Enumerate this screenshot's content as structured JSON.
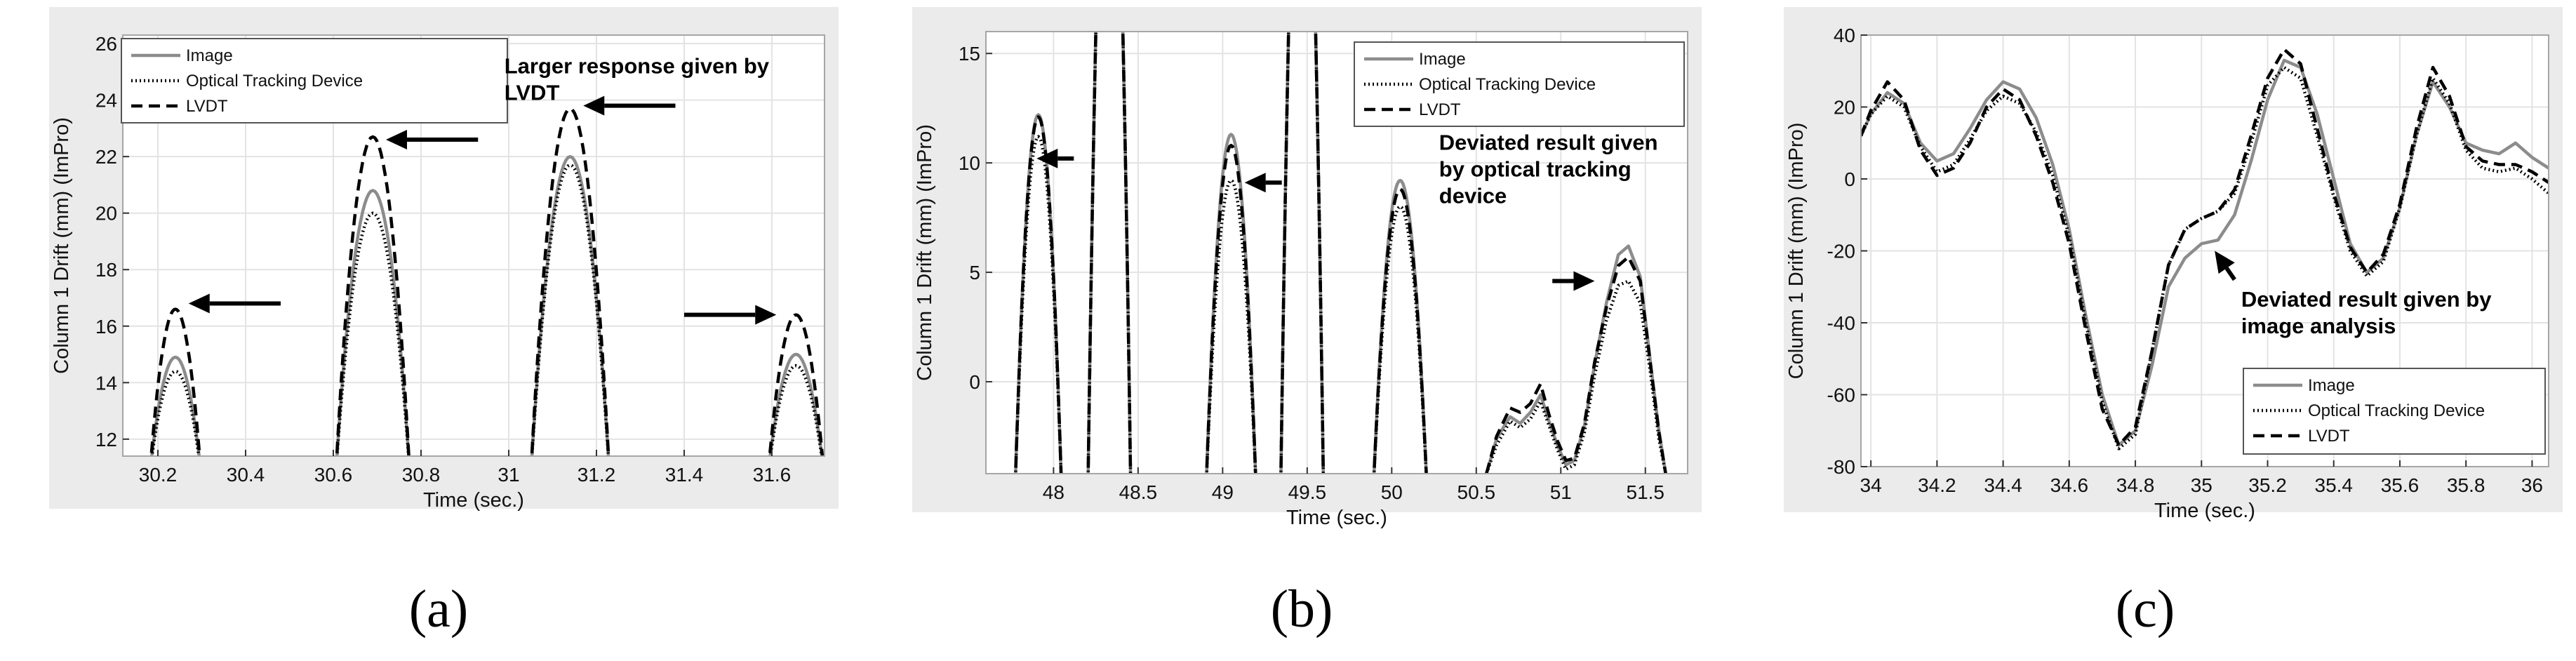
{
  "colors": {
    "image": "#8c8c8c",
    "optical": "#000000",
    "lvdt": "#000000",
    "frame": "#a6a6a6",
    "grid": "#e3e3e3"
  },
  "chart_data": [
    {
      "id": "a",
      "type": "line",
      "sublabel": "(a)",
      "xlabel": "Time (sec.)",
      "ylabel": "Column 1 Drift (mm) (ImPro)",
      "xlim": [
        30.12,
        31.72
      ],
      "ylim": [
        11.4,
        26.3
      ],
      "xticks": [
        30.2,
        30.4,
        30.6,
        30.8,
        31,
        31.2,
        31.4,
        31.6
      ],
      "yticks": [
        12,
        14,
        16,
        18,
        20,
        22,
        24,
        26
      ],
      "grid": true,
      "legend": {
        "placement": "top-left",
        "entries": [
          "Image",
          "Optical Tracking Device",
          "LVDT"
        ]
      },
      "annotations": [
        {
          "text": [
            "Larger response given by",
            "LVDT"
          ],
          "x": 30.99,
          "y": 24.95
        }
      ],
      "arrows": [
        {
          "from": [
            30.48,
            16.8
          ],
          "to": [
            30.27,
            16.8
          ]
        },
        {
          "from": [
            30.93,
            22.6
          ],
          "to": [
            30.72,
            22.6
          ]
        },
        {
          "from": [
            31.38,
            23.8
          ],
          "to": [
            31.17,
            23.8
          ]
        },
        {
          "from": [
            31.4,
            16.4
          ],
          "to": [
            31.61,
            16.4
          ]
        }
      ],
      "peaks": [
        {
          "center": 30.24,
          "half_width": 0.055,
          "image": 14.9,
          "optical": 14.4,
          "lvdt": 16.6
        },
        {
          "center": 30.69,
          "half_width": 0.08,
          "image": 20.8,
          "optical": 20.0,
          "lvdt": 22.7
        },
        {
          "center": 31.14,
          "half_width": 0.085,
          "image": 22.0,
          "optical": 21.7,
          "lvdt": 23.7
        },
        {
          "center": 31.655,
          "half_width": 0.06,
          "image": 15.0,
          "optical": 14.6,
          "lvdt": 16.4
        }
      ]
    },
    {
      "id": "b",
      "type": "line",
      "sublabel": "(b)",
      "xlabel": "Time (sec.)",
      "ylabel": "Column 1 Drift (mm) (ImPro)",
      "xlim": [
        47.6,
        51.75
      ],
      "ylim": [
        -4.2,
        16
      ],
      "xticks": [
        48,
        48.5,
        49,
        49.5,
        50,
        50.5,
        51,
        51.5
      ],
      "yticks": [
        0,
        5,
        10,
        15
      ],
      "grid": true,
      "legend": {
        "placement": "top-right",
        "entries": [
          "Image",
          "Optical Tracking Device",
          "LVDT"
        ]
      },
      "annotations": [
        {
          "text": [
            "Deviated result given",
            "by optical tracking",
            "device"
          ],
          "x": 50.28,
          "y": 10.6
        }
      ],
      "arrows": [
        {
          "from": [
            48.12,
            10.2
          ],
          "to": [
            47.9,
            10.2
          ]
        },
        {
          "from": [
            49.35,
            9.1
          ],
          "to": [
            49.13,
            9.1
          ]
        },
        {
          "from": [
            50.95,
            4.6
          ],
          "to": [
            51.2,
            4.6
          ]
        }
      ],
      "peaks": [
        {
          "center": 47.91,
          "half_width": 0.13,
          "image": 12.2,
          "optical": 11.2,
          "lvdt": 12.1
        },
        {
          "center": 48.33,
          "half_width": 0.12,
          "image": 30,
          "optical": 30,
          "lvdt": 30
        },
        {
          "center": 49.05,
          "half_width": 0.14,
          "image": 11.3,
          "optical": 9.2,
          "lvdt": 10.8
        },
        {
          "center": 49.47,
          "half_width": 0.12,
          "image": 30,
          "optical": 30,
          "lvdt": 30
        },
        {
          "center": 50.05,
          "half_width": 0.15,
          "image": 9.2,
          "optical": 8.0,
          "lvdt": 8.8
        }
      ],
      "segments": {
        "image": {
          "x": [
            50.56,
            50.62,
            50.7,
            50.76,
            50.82,
            50.88,
            50.93,
            50.98,
            51.03,
            51.08,
            51.14,
            51.2,
            51.27,
            51.34,
            51.4,
            51.47,
            51.53,
            51.58,
            51.62
          ],
          "y": [
            -4.2,
            -2.6,
            -1.6,
            -1.9,
            -1.4,
            -0.6,
            -1.8,
            -2.9,
            -3.8,
            -3.6,
            -2.0,
            0.8,
            3.6,
            5.8,
            6.2,
            4.8,
            0.9,
            -2.2,
            -4.2
          ]
        },
        "optical": {
          "x": [
            50.56,
            50.62,
            50.7,
            50.76,
            50.82,
            50.88,
            50.93,
            50.98,
            51.03,
            51.08,
            51.14,
            51.2,
            51.27,
            51.34,
            51.4,
            51.47,
            51.53,
            51.58,
            51.62
          ],
          "y": [
            -4.2,
            -2.9,
            -1.8,
            -2.1,
            -1.7,
            -0.9,
            -2.0,
            -3.1,
            -4.0,
            -3.8,
            -2.3,
            0.3,
            2.8,
            4.4,
            4.6,
            3.6,
            0.4,
            -2.6,
            -4.2
          ]
        },
        "lvdt": {
          "x": [
            50.56,
            50.62,
            50.7,
            50.76,
            50.82,
            50.88,
            50.93,
            50.98,
            51.03,
            51.08,
            51.14,
            51.2,
            51.27,
            51.34,
            51.4,
            51.47,
            51.53,
            51.58,
            51.62
          ],
          "y": [
            -4.2,
            -2.5,
            -1.2,
            -1.4,
            -1.0,
            -0.1,
            -1.5,
            -2.7,
            -3.6,
            -3.5,
            -1.9,
            0.9,
            3.4,
            5.3,
            5.7,
            4.6,
            0.8,
            -2.3,
            -4.2
          ]
        }
      }
    },
    {
      "id": "c",
      "type": "line",
      "sublabel": "(c)",
      "xlabel": "Time (sec.)",
      "ylabel": "Column 1 Drift (mm) (ImPro)",
      "xlim": [
        33.97,
        36.05
      ],
      "ylim": [
        -80,
        40
      ],
      "xticks": [
        34,
        34.2,
        34.4,
        34.6,
        34.8,
        35,
        35.2,
        35.4,
        35.6,
        35.8,
        36
      ],
      "yticks": [
        -80,
        -60,
        -40,
        -20,
        0,
        20,
        40
      ],
      "grid": true,
      "legend": {
        "placement": "bottom-right",
        "entries": [
          "Image",
          "Optical Tracking Device",
          "LVDT"
        ]
      },
      "annotations": [
        {
          "text": [
            "Deviated result given by",
            "image analysis"
          ],
          "x": 35.12,
          "y": -35.5
        }
      ],
      "arrows": [
        {
          "from": [
            35.1,
            -28
          ],
          "to": [
            35.04,
            -20
          ]
        }
      ],
      "series": [
        {
          "key": "image",
          "x": [
            33.97,
            34.0,
            34.05,
            34.1,
            34.15,
            34.2,
            34.25,
            34.3,
            34.35,
            34.4,
            34.45,
            34.5,
            34.55,
            34.6,
            34.65,
            34.7,
            34.75,
            34.8,
            34.85,
            34.9,
            34.95,
            35.0,
            35.05,
            35.1,
            35.15,
            35.2,
            35.25,
            35.3,
            35.35,
            35.4,
            35.45,
            35.5,
            35.55,
            35.6,
            35.65,
            35.7,
            35.75,
            35.8,
            35.85,
            35.9,
            35.95,
            36.0,
            36.05
          ],
          "y": [
            12,
            18,
            24,
            21,
            10,
            5,
            7,
            14,
            22,
            27,
            25,
            17,
            4,
            -14,
            -38,
            -60,
            -74,
            -70,
            -52,
            -30,
            -22,
            -18,
            -17,
            -10,
            5,
            22,
            33,
            31,
            18,
            0,
            -18,
            -26,
            -22,
            -8,
            12,
            27,
            20,
            10,
            8,
            7,
            10,
            6,
            3
          ]
        },
        {
          "key": "optical",
          "x": [
            33.97,
            34.0,
            34.05,
            34.1,
            34.15,
            34.2,
            34.25,
            34.3,
            34.35,
            34.4,
            34.45,
            34.5,
            34.55,
            34.6,
            34.65,
            34.7,
            34.75,
            34.8,
            34.85,
            34.9,
            34.95,
            35.0,
            35.05,
            35.1,
            35.15,
            35.2,
            35.25,
            35.3,
            35.35,
            35.4,
            35.45,
            35.5,
            35.55,
            35.6,
            35.65,
            35.7,
            35.75,
            35.8,
            35.85,
            35.9,
            35.95,
            36.0,
            36.05
          ],
          "y": [
            12,
            18,
            23,
            20,
            9,
            2,
            4,
            11,
            19,
            23,
            21,
            13,
            1,
            -16,
            -40,
            -62,
            -75,
            -71,
            -48,
            -24,
            -14,
            -11,
            -9,
            -4,
            10,
            26,
            31,
            28,
            12,
            -5,
            -20,
            -27,
            -23,
            -8,
            12,
            28,
            21,
            8,
            3,
            2,
            3,
            0,
            -4
          ]
        },
        {
          "key": "lvdt",
          "x": [
            33.97,
            34.0,
            34.05,
            34.1,
            34.15,
            34.2,
            34.25,
            34.3,
            34.35,
            34.4,
            34.45,
            34.5,
            34.55,
            34.6,
            34.65,
            34.7,
            34.75,
            34.8,
            34.85,
            34.9,
            34.95,
            35.0,
            35.05,
            35.1,
            35.15,
            35.2,
            35.25,
            35.3,
            35.35,
            35.4,
            35.45,
            35.5,
            35.55,
            35.6,
            35.65,
            35.7,
            35.75,
            35.8,
            35.85,
            35.9,
            35.95,
            36.0,
            36.05
          ],
          "y": [
            12,
            19,
            27,
            22,
            8,
            1,
            3,
            10,
            20,
            25,
            22,
            12,
            -1,
            -18,
            -42,
            -64,
            -74,
            -69,
            -48,
            -24,
            -14,
            -11,
            -9,
            -3,
            12,
            28,
            36,
            32,
            14,
            -4,
            -19,
            -26,
            -21,
            -7,
            14,
            31,
            23,
            9,
            5,
            4,
            4,
            2,
            -1
          ]
        }
      ]
    }
  ]
}
